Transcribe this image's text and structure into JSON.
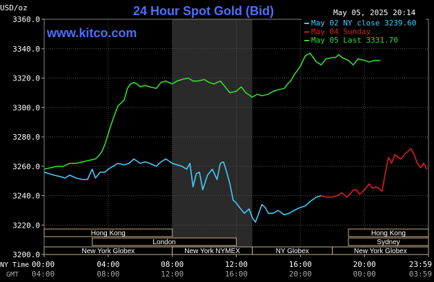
{
  "chart_data": {
    "type": "line",
    "title": "24 Hour Spot Gold (Bid)",
    "ylabel": "USD/oz",
    "watermark": "www.kitco.com",
    "timestamp": "May 05, 2025 20:14",
    "ylim": [
      3200,
      3360
    ],
    "yticks": [
      "3360.0",
      "3340.0",
      "3320.0",
      "3300.0",
      "3280.0",
      "3260.0",
      "3240.0",
      "3220.0",
      "3200.0"
    ],
    "x_axis": {
      "ny_label": "NY Time",
      "gmt_label": "GMT",
      "ny_ticks": [
        "00:00",
        "04:00",
        "08:00",
        "12:00",
        "16:00",
        "20:00",
        "23:59"
      ],
      "gmt_ticks": [
        "04:00",
        "08:00",
        "12:00",
        "16:00",
        "20:00",
        "00:00",
        "03:59"
      ]
    },
    "legend": [
      {
        "label": "May 02 NY close 3239.60",
        "color": "#44ccff"
      },
      {
        "label": "May 04 Sunday",
        "color": "#dd2020"
      },
      {
        "label": "May 05 Last 3331.70",
        "color": "#33dd33"
      }
    ],
    "sessions": {
      "row1": [
        {
          "label": "Hong Kong",
          "start": 0,
          "end": 8
        },
        {
          "label": "Hong Kong",
          "start": 19,
          "end": 24
        }
      ],
      "row2": [
        {
          "label": "London",
          "start": 3,
          "end": 12
        },
        {
          "label": "Sydney",
          "start": 19,
          "end": 24
        }
      ],
      "row3": [
        {
          "label": "New York Globex",
          "start": 0,
          "end": 8
        },
        {
          "label": "New York NYMEX",
          "start": 8,
          "end": 13
        },
        {
          "label": "NY Globex",
          "start": 13,
          "end": 18
        },
        {
          "label": "New York Globex",
          "start": 18,
          "end": 24
        }
      ]
    },
    "highlight_hours": [
      8,
      13
    ],
    "series": [
      {
        "name": "May 02 NY close 3239.60",
        "color": "#44ccff",
        "x": [
          0,
          0.3,
          0.6,
          1.0,
          1.3,
          1.6,
          2.0,
          2.4,
          2.7,
          3.0,
          3.2,
          3.5,
          3.8,
          4.0,
          4.3,
          4.6,
          5.0,
          5.3,
          5.6,
          6.0,
          6.3,
          6.6,
          7.0,
          7.3,
          7.6,
          8.0,
          8.3,
          8.6,
          8.9,
          9.1,
          9.3,
          9.5,
          9.7,
          9.9,
          10.2,
          10.5,
          10.8,
          11.0,
          11.2,
          11.4,
          11.6,
          11.8,
          12.0,
          12.2,
          12.5,
          12.8,
          13.0,
          13.2,
          13.4,
          13.6,
          13.8,
          14.0,
          14.3,
          14.6,
          15.0,
          15.3,
          15.6,
          16.0,
          16.3,
          16.6,
          17.0,
          17.3
        ],
        "values": [
          3256,
          3255,
          3254,
          3253,
          3252,
          3254,
          3252,
          3251,
          3251,
          3258,
          3252,
          3256,
          3256,
          3258,
          3260,
          3262,
          3261,
          3262,
          3265,
          3262,
          3263,
          3262,
          3260,
          3263,
          3265,
          3262,
          3261,
          3260,
          3258,
          3262,
          3246,
          3255,
          3256,
          3244,
          3254,
          3258,
          3251,
          3262,
          3263,
          3256,
          3248,
          3237,
          3235,
          3232,
          3228,
          3231,
          3225,
          3222,
          3228,
          3234,
          3232,
          3228,
          3228,
          3230,
          3227,
          3228,
          3230,
          3232,
          3233,
          3236,
          3239,
          3240
        ]
      },
      {
        "name": "May 04 Sunday",
        "color": "#dd2020",
        "x": [
          17.3,
          17.6,
          18.0,
          18.3,
          18.6,
          18.9,
          19.1,
          19.3,
          19.5,
          19.7,
          20.0,
          20.3,
          20.5,
          20.7,
          20.9,
          21.1,
          21.3,
          21.5,
          21.7,
          21.9,
          22.1,
          22.3,
          22.5,
          22.7,
          22.9,
          23.1,
          23.3,
          23.5,
          23.7,
          23.9
        ],
        "values": [
          3240,
          3239,
          3239,
          3240,
          3242,
          3239,
          3241,
          3244,
          3244,
          3241,
          3244,
          3248,
          3245,
          3246,
          3245,
          3243,
          3255,
          3266,
          3262,
          3268,
          3266,
          3265,
          3268,
          3270,
          3272,
          3268,
          3262,
          3259,
          3262,
          3258
        ]
      },
      {
        "name": "May 05 Last 3331.70",
        "color": "#33dd33",
        "x": [
          0,
          0.4,
          0.8,
          1.2,
          1.6,
          2.0,
          2.4,
          2.8,
          3.2,
          3.4,
          3.6,
          3.8,
          4.0,
          4.2,
          4.4,
          4.6,
          4.8,
          5.0,
          5.2,
          5.4,
          5.6,
          5.8,
          6.0,
          6.3,
          6.6,
          7.0,
          7.3,
          7.6,
          8.0,
          8.3,
          8.6,
          9.0,
          9.3,
          9.6,
          10.0,
          10.3,
          10.6,
          11.0,
          11.3,
          11.6,
          12.0,
          12.3,
          12.6,
          13.0,
          13.3,
          13.6,
          14.0,
          14.3,
          14.6,
          15.0,
          15.2,
          15.4,
          15.6,
          15.8,
          16.0,
          16.3,
          16.6,
          17.0,
          17.3,
          17.6,
          18.0,
          18.2,
          18.4,
          18.6,
          19.0,
          19.3,
          19.6,
          20.0,
          20.3,
          20.6,
          21.0
        ],
        "values": [
          3258,
          3259,
          3260,
          3260,
          3262,
          3262,
          3263,
          3264,
          3265,
          3267,
          3270,
          3275,
          3282,
          3289,
          3295,
          3301,
          3303,
          3305,
          3313,
          3316,
          3317,
          3316,
          3314,
          3315,
          3314,
          3313,
          3317,
          3318,
          3316,
          3318,
          3319,
          3320,
          3318,
          3318,
          3319,
          3317,
          3316,
          3318,
          3314,
          3310,
          3311,
          3314,
          3310,
          3307,
          3309,
          3308,
          3309,
          3311,
          3312,
          3313,
          3316,
          3318,
          3322,
          3325,
          3328,
          3335,
          3337,
          3331,
          3329,
          3333,
          3334,
          3334,
          3336,
          3334,
          3332,
          3329,
          3333,
          3332,
          3331,
          3332,
          3332
        ]
      }
    ]
  }
}
